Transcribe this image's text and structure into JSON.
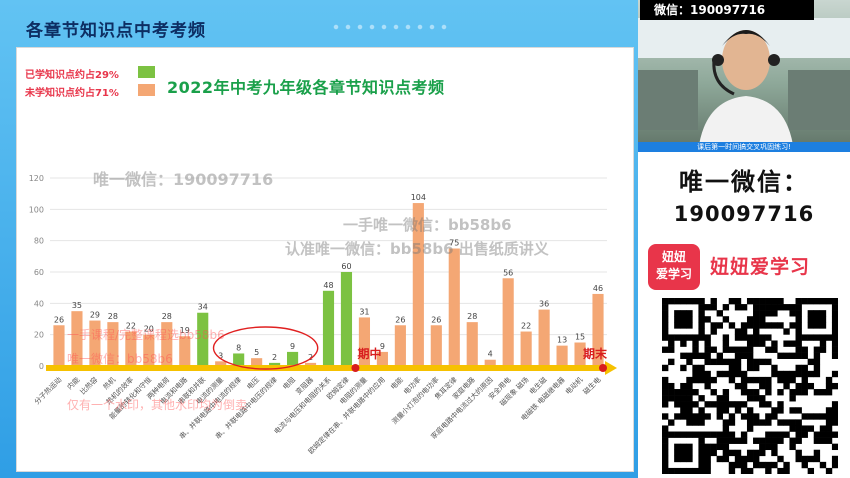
{
  "header": {
    "title": "各章节知识点中考考频"
  },
  "legend": {
    "learned": {
      "label": "已学知识点约占29%",
      "color": "#7cc242"
    },
    "unlearned": {
      "label": "未学知识点约占71%",
      "color": "#f4a774"
    }
  },
  "markers": {
    "midterm": "期中",
    "final": "期末"
  },
  "watermarks": {
    "w1": "唯一微信：190097716",
    "w2": "一手唯一微信：bb58b6",
    "w3": "认准唯一微信：bb58b6 出售纸质讲义",
    "w4": "一手课程/完整课程选bb58b6",
    "w5": "唯一微信：bb58b6",
    "w6": "仅有一个水印，其他水印均为倒卖"
  },
  "camera": {
    "label": "微信：190097716",
    "strip": "课后第一时间搞交叉巩固练习!"
  },
  "promo": {
    "title": "唯一微信：",
    "id": "190097716",
    "logo_line1": "妞妞",
    "logo_line2": "爱学习",
    "brand": "妞妞爱学习"
  },
  "icons": {
    "qr": "qr-code-icon",
    "logo": "brand-logo-icon"
  },
  "chart_data": {
    "type": "bar",
    "title": "2022年中考九年级各章节知识点考频",
    "ylim": [
      0,
      120
    ],
    "yticks": [
      0,
      20,
      40,
      60,
      80,
      100,
      120
    ],
    "grid": true,
    "midterm_after_index": 17,
    "categories": [
      "分子热运动",
      "内能",
      "比热容",
      "热机",
      "热机的效率",
      "能量的转化和守恒",
      "两种电荷",
      "电流和电路",
      "串联和并联",
      "电流的测量",
      "串、并联电路中电流的规律",
      "电压",
      "串、并联电路中电压的规律",
      "电阻",
      "变阻器",
      "电流与电压和电阻的关系",
      "欧姆定律",
      "电阻的测量",
      "欧姆定律在串、并联电路中的应用",
      "电能",
      "电功率",
      "测量小灯泡的电功率",
      "焦耳定律",
      "家庭电路",
      "家庭电路中电流过大的原因",
      "安全用电",
      "磁现象 磁场",
      "电生磁",
      "电磁铁 电磁继电器",
      "电动机",
      "磁生电"
    ],
    "values": [
      26,
      35,
      29,
      28,
      22,
      20,
      28,
      19,
      34,
      3,
      8,
      5,
      2,
      9,
      2,
      48,
      60,
      31,
      9,
      26,
      104,
      26,
      75,
      28,
      4,
      56,
      22,
      36,
      13,
      15,
      46
    ],
    "status": [
      "u",
      "u",
      "u",
      "u",
      "u",
      "u",
      "u",
      "u",
      "l",
      "u",
      "l",
      "u",
      "l",
      "l",
      "u",
      "l",
      "l",
      "u",
      "u",
      "u",
      "u",
      "u",
      "u",
      "u",
      "u",
      "u",
      "u",
      "u",
      "u",
      "u",
      "u"
    ],
    "colors": {
      "l": "#7cc242",
      "u": "#f4a774"
    }
  }
}
